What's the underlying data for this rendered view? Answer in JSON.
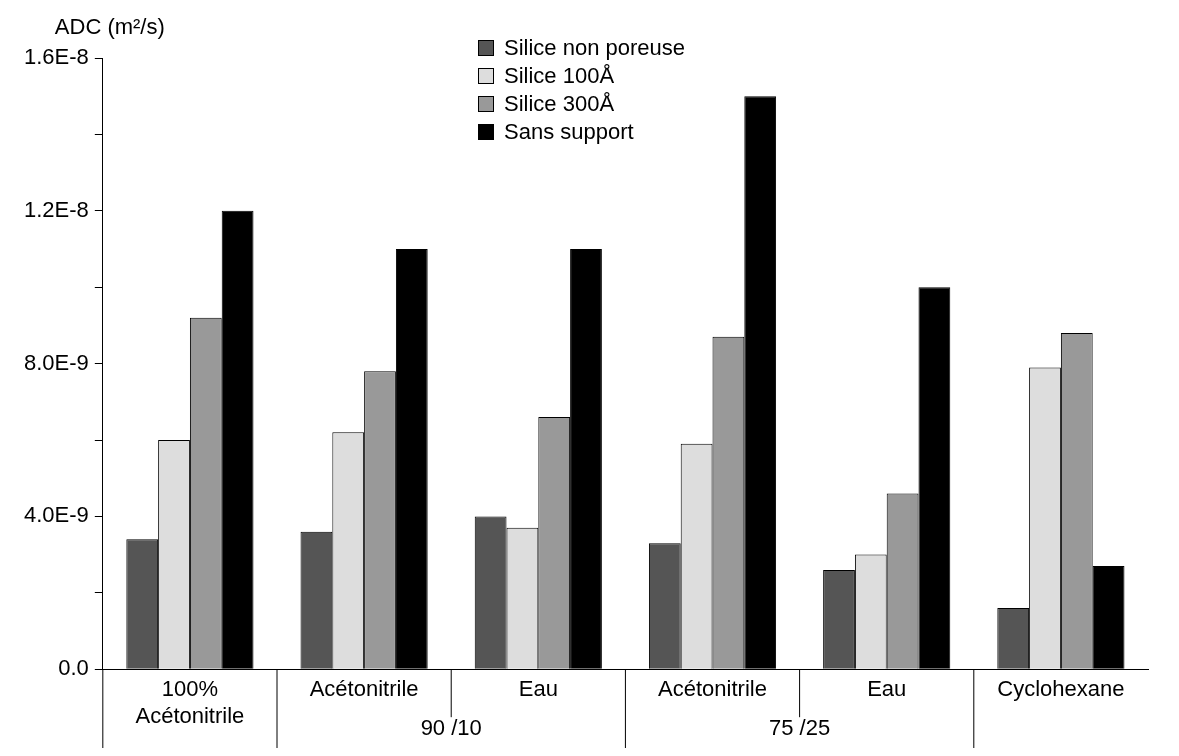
{
  "chart_data": {
    "type": "bar",
    "ylabel": "ADC (m²/s)",
    "categories": [
      "100%\nAcétonitrile",
      "Acétonitrile",
      "Eau",
      "Acétonitrile",
      "Eau",
      "Cyclohexane"
    ],
    "series": [
      {
        "name": "Silice non poreuse",
        "color": "#555555",
        "values": [
          3.4e-09,
          3.6e-09,
          4e-09,
          3.3e-09,
          2.6e-09,
          1.6e-09
        ]
      },
      {
        "name": "Silice 100Å",
        "color": "#dddddd",
        "values": [
          6e-09,
          6.2e-09,
          3.7e-09,
          5.9e-09,
          3e-09,
          7.9e-09
        ]
      },
      {
        "name": "Silice 300Å",
        "color": "#999999",
        "values": [
          9.2e-09,
          7.8e-09,
          6.6e-09,
          8.7e-09,
          4.6e-09,
          8.8e-09
        ]
      },
      {
        "name": "Sans support",
        "color": "#000000",
        "values": [
          1.2e-08,
          1.1e-08,
          1.1e-08,
          1.5e-08,
          1e-08,
          2.7e-09
        ]
      }
    ],
    "annotations": [
      "90 /10",
      "75 /25"
    ],
    "ylim": [
      0,
      1.6e-08
    ],
    "yticks": [
      {
        "value": 0,
        "label": "0.0"
      },
      {
        "value": 2e-09,
        "label": null
      },
      {
        "value": 4e-09,
        "label": "4.0E-9"
      },
      {
        "value": 6e-09,
        "label": null
      },
      {
        "value": 8e-09,
        "label": "8.0E-9"
      },
      {
        "value": 1e-08,
        "label": null
      },
      {
        "value": 1.2e-08,
        "label": "1.2E-8"
      },
      {
        "value": 1.4e-08,
        "label": null
      },
      {
        "value": 1.6e-08,
        "label": "1.6E-8"
      }
    ],
    "grid": false,
    "legend": "top"
  }
}
